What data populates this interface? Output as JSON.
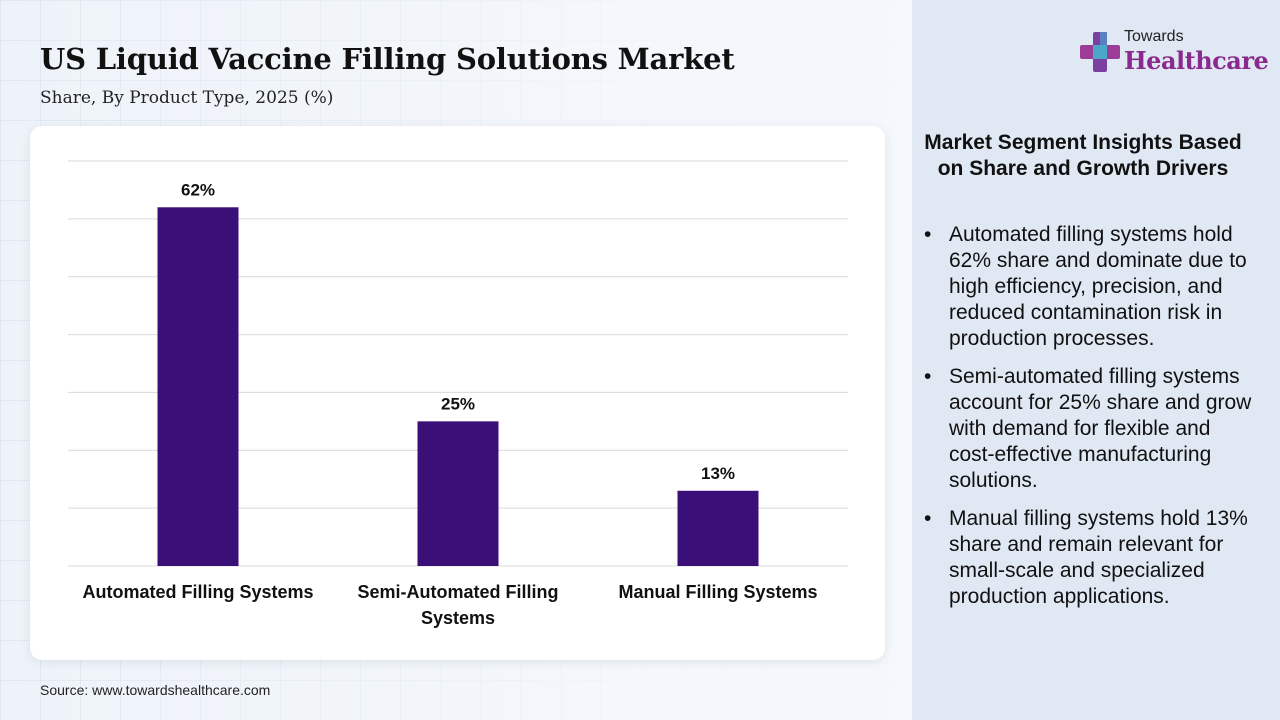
{
  "header": {
    "title": "US Liquid Vaccine Filling Solutions Market",
    "subtitle": "Share, By Product Type, 2025 (%)"
  },
  "logo": {
    "small": "Towards",
    "big": "Healthcare"
  },
  "source": "Source: www.towardshealthcare.com",
  "insights": {
    "title": "Market Segment Insights Based on Share and Growth Drivers",
    "items": [
      "Automated filling systems hold 62% share and dominate due to high efficiency, precision, and reduced contamination risk in production processes.",
      "Semi-automated filling systems account for 25% share and grow with demand for flexible and cost-effective manufacturing solutions.",
      "Manual filling systems hold 13% share and remain relevant for small-scale and specialized production applications."
    ]
  },
  "chart_data": {
    "type": "bar",
    "categories": [
      "Automated Filling Systems",
      "Semi-Automated Filling Systems",
      "Manual Filling Systems"
    ],
    "category_lines": [
      [
        "Automated Filling Systems"
      ],
      [
        "Semi-Automated Filling",
        "Systems"
      ],
      [
        "Manual Filling Systems"
      ]
    ],
    "values": [
      62,
      25,
      13
    ],
    "data_labels": [
      "62%",
      "25%",
      "13%"
    ],
    "ylim": [
      0,
      70
    ],
    "ytick_step": 10,
    "grid": true,
    "bar_color": "#3b0f78"
  },
  "colors": {
    "bar": "#3b0f78",
    "logo_accent": "#8a2a8e"
  }
}
